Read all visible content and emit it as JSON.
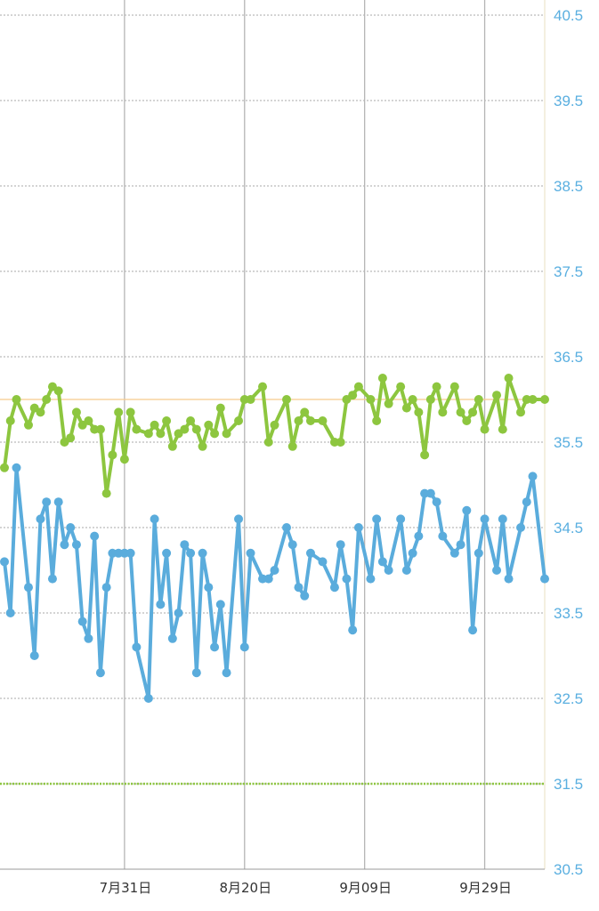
{
  "chart_data": {
    "type": "line",
    "title": "",
    "xlabel": "",
    "ylabel": "",
    "ylim": [
      30.5,
      40.5
    ],
    "xlim": [
      "7/11",
      "10/09"
    ],
    "y_ticks": [
      "40.5",
      "39.5",
      "38.5",
      "37.5",
      "36.5",
      "35.5",
      "34.5",
      "33.5",
      "32.5",
      "31.5",
      "30.5"
    ],
    "x_ticks": [
      {
        "date": "7/31",
        "label": "7月31日"
      },
      {
        "date": "8/20",
        "label": "8月20日"
      },
      {
        "date": "9/09",
        "label": "9月09日"
      },
      {
        "date": "9/29",
        "label": "9月29日"
      }
    ],
    "grid": true,
    "y_axis_side": "right",
    "reference_lines": [
      {
        "value": 36.0,
        "color": "#f7c98c",
        "style": "solid"
      },
      {
        "value": 31.5,
        "color": "#8dc63f",
        "style": "dotted"
      }
    ],
    "x": [
      "7/11",
      "7/12",
      "7/13",
      "7/15",
      "7/16",
      "7/17",
      "7/18",
      "7/19",
      "7/20",
      "7/21",
      "7/22",
      "7/23",
      "7/24",
      "7/25",
      "7/26",
      "7/27",
      "7/28",
      "7/29",
      "7/30",
      "7/31",
      "8/01",
      "8/02",
      "8/04",
      "8/05",
      "8/06",
      "8/07",
      "8/08",
      "8/09",
      "8/10",
      "8/11",
      "8/12",
      "8/13",
      "8/14",
      "8/15",
      "8/16",
      "8/17",
      "8/19",
      "8/20",
      "8/21",
      "8/23",
      "8/24",
      "8/25",
      "8/27",
      "8/28",
      "8/29",
      "8/30",
      "8/31",
      "9/02",
      "9/04",
      "9/05",
      "9/06",
      "9/07",
      "9/08",
      "9/10",
      "9/11",
      "9/12",
      "9/13",
      "9/15",
      "9/16",
      "9/17",
      "9/18",
      "9/19",
      "9/20",
      "9/21",
      "9/22",
      "9/24",
      "9/25",
      "9/26",
      "9/27",
      "9/28",
      "9/29",
      "10/01",
      "10/02",
      "10/03",
      "10/05",
      "10/06",
      "10/07",
      "10/09"
    ],
    "series": [
      {
        "color": "#8dc63f",
        "values": [
          35.2,
          35.75,
          36.0,
          35.7,
          35.9,
          35.85,
          36.0,
          36.15,
          36.1,
          35.5,
          35.55,
          35.85,
          35.7,
          35.75,
          35.65,
          35.65,
          34.9,
          35.35,
          35.85,
          35.3,
          35.85,
          35.65,
          35.6,
          35.7,
          35.6,
          35.75,
          35.45,
          35.6,
          35.65,
          35.75,
          35.65,
          35.45,
          35.7,
          35.6,
          35.9,
          35.6,
          35.75,
          36.0,
          36.0,
          36.15,
          35.5,
          35.7,
          36.0,
          35.45,
          35.75,
          35.85,
          35.75,
          35.75,
          35.5,
          35.5,
          36.0,
          36.05,
          36.15,
          36.0,
          35.75,
          36.25,
          35.95,
          36.15,
          35.9,
          36.0,
          35.85,
          35.35,
          36.0,
          36.15,
          35.85,
          36.15,
          35.85,
          35.75,
          35.85,
          36.0,
          35.65,
          36.05,
          35.65,
          36.25,
          35.85,
          36.0,
          36.0,
          36.0
        ]
      },
      {
        "color": "#5aacdc",
        "values": [
          34.1,
          33.5,
          35.2,
          33.8,
          33.0,
          34.6,
          34.8,
          33.9,
          34.8,
          34.3,
          34.5,
          34.3,
          33.4,
          33.2,
          34.4,
          32.8,
          33.8,
          34.2,
          34.2,
          34.2,
          34.2,
          33.1,
          32.5,
          34.6,
          33.6,
          34.2,
          33.2,
          33.5,
          34.3,
          34.2,
          32.8,
          34.2,
          33.8,
          33.1,
          33.6,
          32.8,
          34.6,
          33.1,
          34.2,
          33.9,
          33.9,
          34.0,
          34.5,
          34.3,
          33.8,
          33.7,
          34.2,
          34.1,
          33.8,
          34.3,
          33.9,
          33.3,
          34.5,
          33.9,
          34.6,
          34.1,
          34.0,
          34.6,
          34.0,
          34.2,
          34.4,
          34.9,
          34.9,
          34.8,
          34.4,
          34.2,
          34.3,
          34.7,
          33.3,
          34.2,
          34.6,
          34.0,
          34.6,
          33.9,
          34.5,
          34.8,
          35.1,
          33.9
        ]
      }
    ]
  }
}
